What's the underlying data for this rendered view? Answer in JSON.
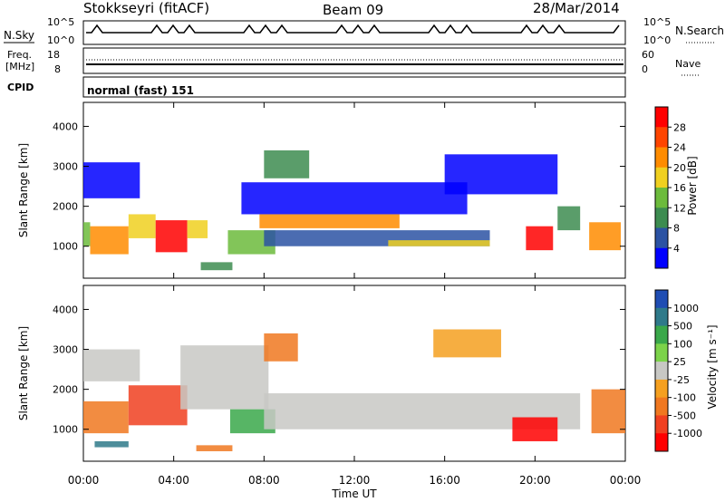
{
  "header": {
    "station": "Stokkseyri (fitACF)",
    "beam": "Beam 09",
    "date": "28/Mar/2014"
  },
  "top_panels": {
    "nsky_label": "N.Sky",
    "nsearch_label": "N.Search",
    "freq_label_1": "Freq.",
    "freq_label_2": "[MHz]",
    "nave_label": "Nave",
    "cpid_label": "CPID",
    "cpid_value": "normal (fast) 151",
    "noise_ticks_left": [
      "10^5",
      "10^0"
    ],
    "noise_ticks_right": [
      "10^5",
      "10^0"
    ],
    "freq_ticks": [
      "18",
      "8"
    ],
    "nave_ticks": [
      "60",
      "0"
    ]
  },
  "colors": {
    "power_scale": [
      "#0000ff",
      "#2b52a3",
      "#3d8c50",
      "#6cbb3c",
      "#f0d020",
      "#ff8c00",
      "#ff4500",
      "#ff0000"
    ],
    "velocity_scale": [
      "#1f4db3",
      "#2f7a8a",
      "#3aa84a",
      "#7cd34a",
      "#c8c8c4",
      "#f5a020",
      "#f07820",
      "#f04020",
      "#ff0000"
    ]
  },
  "chart_data": [
    {
      "type": "heatmap",
      "title": "",
      "xlabel": "",
      "ylabel": "Slant Range [km]",
      "x_ticks": [
        "00:00",
        "04:00",
        "08:00",
        "12:00",
        "16:00",
        "20:00",
        "00:00"
      ],
      "xlim": [
        0,
        24
      ],
      "ylim": [
        200,
        4600
      ],
      "y_ticks": [
        "1000",
        "2000",
        "3000",
        "4000"
      ],
      "colorbar": {
        "label": "Power [dB]",
        "ticks": [
          "28",
          "24",
          "20",
          "16",
          "12",
          "8",
          "4"
        ]
      },
      "regions": [
        {
          "x": [
            0.0,
            0.3
          ],
          "y": [
            1000,
            1600
          ],
          "value": 14
        },
        {
          "x": [
            0.3,
            2.0
          ],
          "y": [
            800,
            1500
          ],
          "value": 22
        },
        {
          "x": [
            2.0,
            3.2
          ],
          "y": [
            1200,
            1800
          ],
          "value": 20
        },
        {
          "x": [
            3.2,
            4.6
          ],
          "y": [
            850,
            1650
          ],
          "value": 29
        },
        {
          "x": [
            4.6,
            5.5
          ],
          "y": [
            1200,
            1650
          ],
          "value": 18
        },
        {
          "x": [
            5.2,
            6.6
          ],
          "y": [
            400,
            600
          ],
          "value": 10
        },
        {
          "x": [
            6.4,
            8.5
          ],
          "y": [
            800,
            1400
          ],
          "value": 16
        },
        {
          "x": [
            7.8,
            14.0
          ],
          "y": [
            1450,
            1800
          ],
          "value": 22
        },
        {
          "x": [
            8.0,
            18.0
          ],
          "y": [
            1000,
            1400
          ],
          "value": 8
        },
        {
          "x": [
            13.5,
            18.0
          ],
          "y": [
            1000,
            1150
          ],
          "value": 20
        },
        {
          "x": [
            19.6,
            20.8
          ],
          "y": [
            900,
            1500
          ],
          "value": 28
        },
        {
          "x": [
            21.0,
            22.0
          ],
          "y": [
            1400,
            2000
          ],
          "value": 12
        },
        {
          "x": [
            22.4,
            23.8
          ],
          "y": [
            900,
            1600
          ],
          "value": 24
        },
        {
          "x": [
            7.0,
            17.0
          ],
          "y": [
            1800,
            2600
          ],
          "value": 4
        },
        {
          "x": [
            16.0,
            21.0
          ],
          "y": [
            2300,
            3300
          ],
          "value": 4
        },
        {
          "x": [
            0.0,
            2.5
          ],
          "y": [
            2200,
            3100
          ],
          "value": 5
        },
        {
          "x": [
            8.0,
            10.0
          ],
          "y": [
            2700,
            3400
          ],
          "value": 12
        }
      ]
    },
    {
      "type": "heatmap",
      "title": "",
      "xlabel": "Time UT",
      "ylabel": "Slant Range [km]",
      "x_ticks": [
        "00:00",
        "04:00",
        "08:00",
        "12:00",
        "16:00",
        "20:00",
        "00:00"
      ],
      "xlim": [
        0,
        24
      ],
      "ylim": [
        200,
        4600
      ],
      "y_ticks": [
        "1000",
        "2000",
        "3000",
        "4000"
      ],
      "colorbar": {
        "label": "Velocity [m s⁻¹]",
        "ticks": [
          "1000",
          "500",
          "100",
          "25",
          "-25",
          "-100",
          "-500",
          "-1000"
        ]
      },
      "regions": [
        {
          "x": [
            0.0,
            2.5
          ],
          "y": [
            2200,
            3000
          ],
          "value": 0
        },
        {
          "x": [
            0.0,
            2.0
          ],
          "y": [
            900,
            1700
          ],
          "value": -300
        },
        {
          "x": [
            2.0,
            4.6
          ],
          "y": [
            1100,
            2100
          ],
          "value": -400
        },
        {
          "x": [
            0.5,
            2.0
          ],
          "y": [
            550,
            700
          ],
          "value": 300
        },
        {
          "x": [
            5.0,
            6.6
          ],
          "y": [
            450,
            600
          ],
          "value": -200
        },
        {
          "x": [
            4.3,
            8.2
          ],
          "y": [
            1500,
            3100
          ],
          "value": 0
        },
        {
          "x": [
            6.5,
            8.5
          ],
          "y": [
            900,
            1500
          ],
          "value": 200
        },
        {
          "x": [
            8.0,
            22.0
          ],
          "y": [
            1000,
            1900
          ],
          "value": 0
        },
        {
          "x": [
            15.5,
            18.5
          ],
          "y": [
            2800,
            3500
          ],
          "value": -60
        },
        {
          "x": [
            19.0,
            21.0
          ],
          "y": [
            700,
            1300
          ],
          "value": -800
        },
        {
          "x": [
            22.5,
            24.0
          ],
          "y": [
            900,
            2000
          ],
          "value": -300
        },
        {
          "x": [
            8.0,
            9.5
          ],
          "y": [
            2700,
            3400
          ],
          "value": -300
        }
      ]
    }
  ]
}
